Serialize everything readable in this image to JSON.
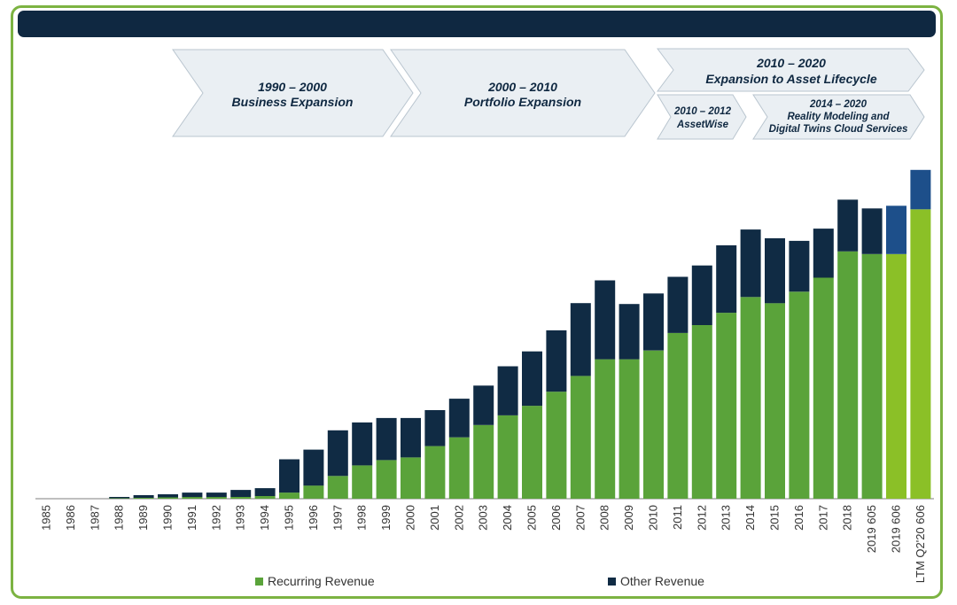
{
  "title": "",
  "timeline": {
    "phase1": {
      "years": "1990 – 2000",
      "label": "Business Expansion"
    },
    "phase2": {
      "years": "2000 – 2010",
      "label": "Portfolio Expansion"
    },
    "phase3": {
      "years": "2010 – 2020",
      "label": "Expansion to Asset Lifecycle"
    },
    "phase3a": {
      "years": "2010 – 2012",
      "label": "AssetWise"
    },
    "phase3b": {
      "years": "2014 – 2020",
      "label1": "Reality Modeling and",
      "label2": "Digital Twins Cloud Services"
    }
  },
  "legend": {
    "recurring": "Recurring Revenue",
    "other": "Other Revenue"
  },
  "colors": {
    "recurring": "#5aa33a",
    "recurring_highlight": "#8bc027",
    "other": "#102b44",
    "other_highlight": "#1d4f8a",
    "frame": "#7cb342"
  },
  "chart_data": {
    "type": "bar",
    "stacked": true,
    "categories": [
      "1985",
      "1986",
      "1987",
      "1988",
      "1989",
      "1990",
      "1991",
      "1992",
      "1993",
      "1994",
      "1995",
      "1996",
      "1997",
      "1998",
      "1999",
      "2000",
      "2001",
      "2002",
      "2003",
      "2004",
      "2005",
      "2006",
      "2007",
      "2008",
      "2009",
      "2010",
      "2011",
      "2012",
      "2013",
      "2014",
      "2015",
      "2016",
      "2017",
      "2018",
      "2019 605",
      "2019 606",
      "LTM Q2'20 606"
    ],
    "series": [
      {
        "name": "Recurring Revenue",
        "values": [
          0,
          0,
          0,
          0.5,
          1,
          1.5,
          2,
          2,
          2,
          3,
          7,
          15,
          26,
          38,
          44,
          47,
          60,
          70,
          84,
          95,
          106,
          122,
          140,
          159,
          159,
          169,
          189,
          198,
          212,
          230,
          223,
          236,
          252,
          282,
          279,
          279,
          330
        ]
      },
      {
        "name": "Other Revenue",
        "values": [
          0,
          0,
          0,
          1.5,
          3,
          3.5,
          5,
          5,
          8,
          9,
          38,
          41,
          52,
          49,
          48,
          45,
          41,
          44,
          45,
          56,
          62,
          70,
          83,
          90,
          63,
          65,
          64,
          68,
          77,
          77,
          74,
          58,
          56,
          59,
          52,
          55,
          45
        ]
      }
    ],
    "grid": false,
    "legend_position": "bottom"
  }
}
